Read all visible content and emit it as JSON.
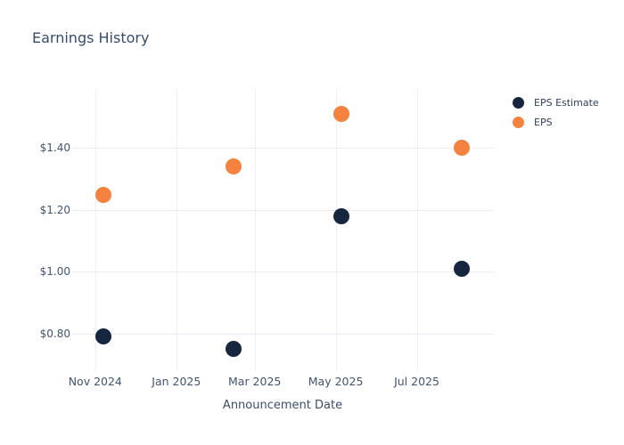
{
  "chart": {
    "title": "Earnings History",
    "xlabel": "Announcement Date"
  },
  "colors": {
    "eps_estimate": "#16263e",
    "eps_actual": "#f5823e",
    "grid": "#e8ecf2",
    "title_text": "#374b6b",
    "tick_text": "#42546f",
    "background": "#ffffff"
  },
  "chart_data": {
    "type": "scatter",
    "title": "Earnings History",
    "xlabel": "Announcement Date",
    "ylabel": "",
    "grid": true,
    "legend_position": "right",
    "x_axis": {
      "type": "date",
      "range": [
        "2024-10-14",
        "2025-08-28"
      ],
      "ticks": [
        {
          "label": "Nov 2024",
          "date": "2024-11-01"
        },
        {
          "label": "Jan 2025",
          "date": "2025-01-01"
        },
        {
          "label": "Mar 2025",
          "date": "2025-03-01"
        },
        {
          "label": "May 2025",
          "date": "2025-05-01"
        },
        {
          "label": "Jul 2025",
          "date": "2025-07-01"
        }
      ]
    },
    "y_axis": {
      "range": [
        0.679,
        1.591
      ],
      "ticks": [
        {
          "label": "$0.80",
          "value": 0.8
        },
        {
          "label": "$1.00",
          "value": 1.0
        },
        {
          "label": "$1.20",
          "value": 1.2
        },
        {
          "label": "$1.40",
          "value": 1.4
        }
      ]
    },
    "x_dates": [
      "2024-11-07",
      "2025-02-13",
      "2025-05-05",
      "2025-08-04"
    ],
    "series": [
      {
        "name": "EPS Estimate",
        "color": "#16263e",
        "marker_size": 18,
        "values": [
          0.79,
          0.75,
          1.18,
          1.01
        ]
      },
      {
        "name": "EPS",
        "color": "#f5823e",
        "marker_size": 18,
        "values": [
          1.25,
          1.34,
          1.51,
          1.4
        ]
      }
    ]
  }
}
